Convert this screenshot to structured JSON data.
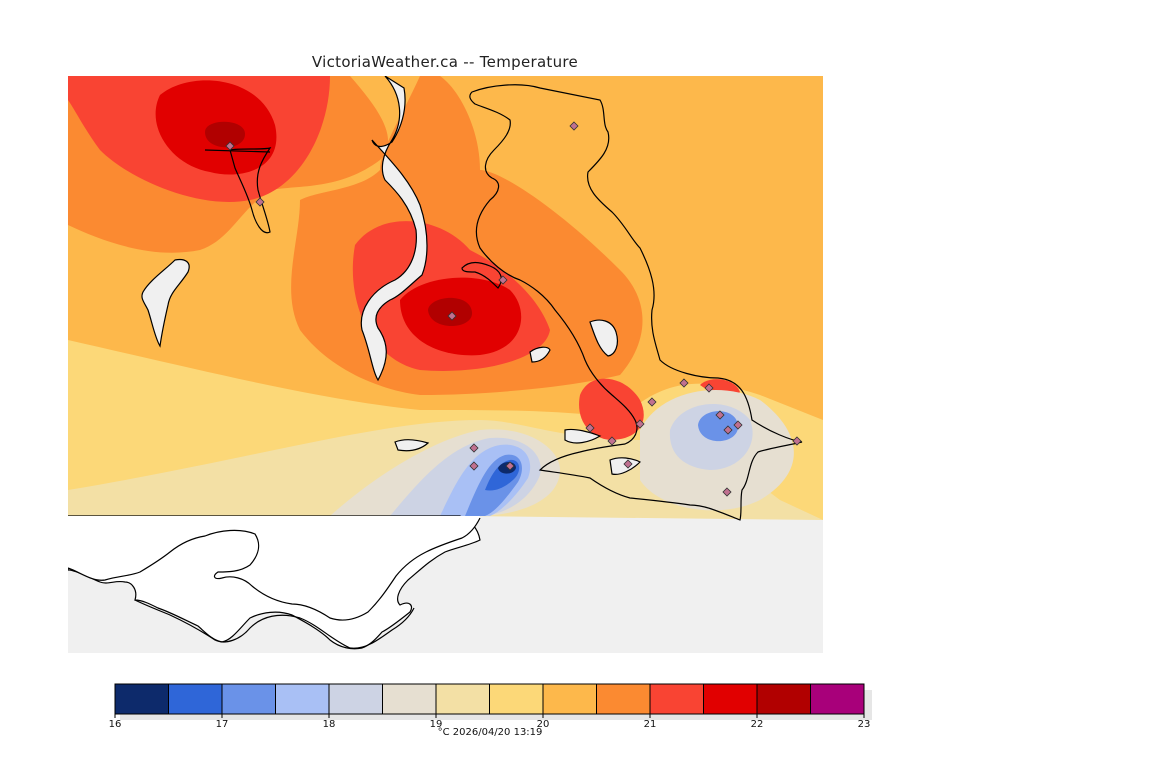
{
  "map": {
    "title": "VictoriaWeather.ca -- Temperature",
    "colors": {
      "background": "#f0f0f0",
      "land_outline": "#000000",
      "station_marker": "#c07090"
    }
  },
  "legend": {
    "unit": "°C",
    "timestamp": "2026/04/20 13:19",
    "ticks": [
      "16",
      "17",
      "18",
      "19",
      "20",
      "21",
      "22",
      "23"
    ],
    "bins": [
      {
        "from": 16.0,
        "to": 16.5,
        "color": "#0d2a6b"
      },
      {
        "from": 16.5,
        "to": 17.0,
        "color": "#2f66d8"
      },
      {
        "from": 17.0,
        "to": 17.5,
        "color": "#6a92e8"
      },
      {
        "from": 17.5,
        "to": 18.0,
        "color": "#a9c0f5"
      },
      {
        "from": 18.0,
        "to": 18.5,
        "color": "#cdd3e4"
      },
      {
        "from": 18.5,
        "to": 19.0,
        "color": "#e6dfd1"
      },
      {
        "from": 19.0,
        "to": 19.5,
        "color": "#f3e0a5"
      },
      {
        "from": 19.5,
        "to": 20.0,
        "color": "#fcd878"
      },
      {
        "from": 20.0,
        "to": 20.5,
        "color": "#fdb84b"
      },
      {
        "from": 20.5,
        "to": 21.0,
        "color": "#fb8a31"
      },
      {
        "from": 21.0,
        "to": 21.5,
        "color": "#f94433"
      },
      {
        "from": 21.5,
        "to": 22.0,
        "color": "#e10000"
      },
      {
        "from": 22.0,
        "to": 22.5,
        "color": "#b10000"
      },
      {
        "from": 22.5,
        "to": 23.0,
        "color": "#a8007a"
      }
    ]
  }
}
